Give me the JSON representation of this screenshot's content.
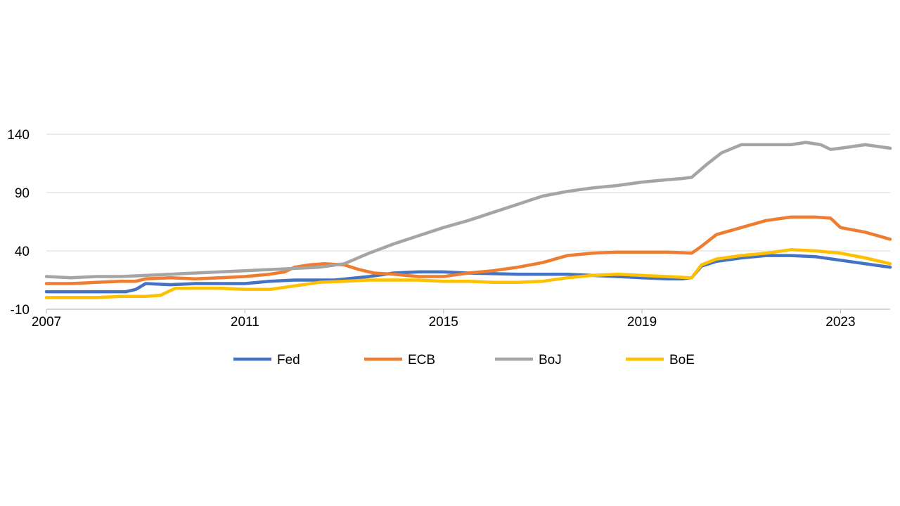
{
  "chart_data": {
    "type": "line",
    "title": "",
    "xlabel": "",
    "ylabel": "",
    "xlim": [
      2007,
      2024.0
    ],
    "ylim": [
      -10,
      140
    ],
    "yticks": [
      -10,
      40,
      90,
      140
    ],
    "xticks": [
      2007,
      2011,
      2015,
      2019,
      2023
    ],
    "grid": true,
    "legend": "bottom",
    "series": [
      {
        "name": "Fed",
        "color": "#4472c4",
        "x": [
          2007.0,
          2008.6,
          2008.8,
          2009.0,
          2009.5,
          2010.0,
          2011.0,
          2011.5,
          2012.0,
          2012.8,
          2013.5,
          2014.0,
          2014.5,
          2015.0,
          2015.5,
          2016.5,
          2017.5,
          2018.0,
          2018.5,
          2019.0,
          2019.5,
          2019.8,
          2020.0,
          2020.2,
          2020.5,
          2021.0,
          2021.5,
          2022.0,
          2022.5,
          2023.0,
          2023.5,
          2024.0
        ],
        "values": [
          5,
          5,
          7,
          12,
          11,
          12,
          12,
          14,
          15,
          15,
          18,
          21,
          22,
          22,
          21,
          20,
          20,
          19,
          18,
          17,
          16,
          16,
          17,
          27,
          31,
          34,
          36,
          36,
          35,
          32,
          29,
          26
        ]
      },
      {
        "name": "ECB",
        "color": "#ed7d31",
        "x": [
          2007.0,
          2007.5,
          2008.0,
          2008.5,
          2008.8,
          2009.0,
          2009.5,
          2010.0,
          2010.5,
          2011.0,
          2011.5,
          2011.8,
          2012.0,
          2012.3,
          2012.6,
          2013.0,
          2013.3,
          2013.6,
          2014.0,
          2014.5,
          2015.0,
          2015.5,
          2016.0,
          2016.5,
          2017.0,
          2017.5,
          2018.0,
          2018.5,
          2019.0,
          2019.5,
          2020.0,
          2020.2,
          2020.5,
          2021.0,
          2021.5,
          2022.0,
          2022.5,
          2022.8,
          2023.0,
          2023.5,
          2024.0
        ],
        "values": [
          12,
          12,
          13,
          14,
          14,
          16,
          17,
          16,
          17,
          18,
          20,
          22,
          26,
          28,
          29,
          28,
          24,
          21,
          20,
          18,
          18,
          21,
          23,
          26,
          30,
          36,
          38,
          39,
          39,
          39,
          38,
          44,
          54,
          60,
          66,
          69,
          69,
          68,
          60,
          56,
          50
        ]
      },
      {
        "name": "BoJ",
        "color": "#a5a5a5",
        "x": [
          2007.0,
          2007.5,
          2008.0,
          2008.5,
          2009.0,
          2009.5,
          2010.0,
          2010.5,
          2011.0,
          2011.5,
          2012.0,
          2012.5,
          2013.0,
          2013.5,
          2014.0,
          2014.5,
          2015.0,
          2015.5,
          2016.0,
          2016.5,
          2017.0,
          2017.5,
          2018.0,
          2018.5,
          2019.0,
          2019.5,
          2019.8,
          2020.0,
          2020.3,
          2020.6,
          2021.0,
          2021.5,
          2022.0,
          2022.3,
          2022.6,
          2022.8,
          2023.0,
          2023.5,
          2024.0
        ],
        "values": [
          18,
          17,
          18,
          18,
          19,
          20,
          21,
          22,
          23,
          24,
          25,
          26,
          29,
          38,
          46,
          53,
          60,
          66,
          73,
          80,
          87,
          91,
          94,
          96,
          99,
          101,
          102,
          103,
          114,
          124,
          131,
          131,
          131,
          133,
          131,
          127,
          128,
          131,
          128
        ]
      },
      {
        "name": "BoE",
        "color": "#ffc000",
        "x": [
          2007.0,
          2008.0,
          2008.5,
          2009.0,
          2009.3,
          2009.6,
          2010.0,
          2010.5,
          2011.0,
          2011.5,
          2012.0,
          2012.5,
          2013.0,
          2013.5,
          2014.0,
          2014.5,
          2015.0,
          2015.5,
          2016.0,
          2016.5,
          2017.0,
          2017.5,
          2018.0,
          2018.5,
          2019.0,
          2019.5,
          2020.0,
          2020.2,
          2020.5,
          2021.0,
          2021.5,
          2022.0,
          2022.5,
          2023.0,
          2023.5,
          2024.0
        ],
        "values": [
          0,
          0,
          1,
          1,
          2,
          8,
          8,
          8,
          7,
          7,
          10,
          13,
          14,
          15,
          15,
          15,
          14,
          14,
          13,
          13,
          14,
          17,
          19,
          20,
          19,
          18,
          17,
          28,
          33,
          36,
          38,
          41,
          40,
          38,
          34,
          29
        ]
      }
    ]
  }
}
